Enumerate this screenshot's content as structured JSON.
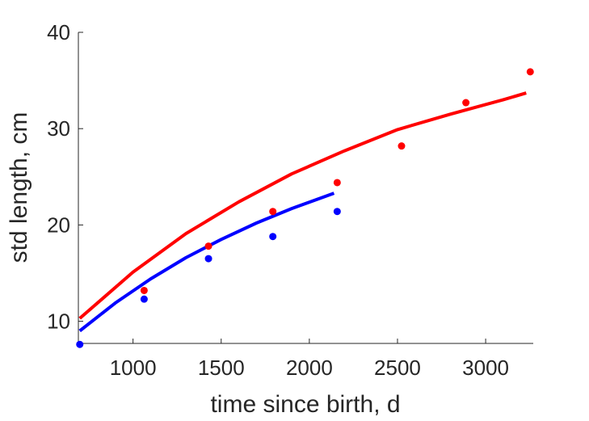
{
  "chart_data": {
    "type": "scatter",
    "xlabel": "time since birth, d",
    "ylabel": "std length, cm",
    "xlim": [
      690,
      3270
    ],
    "ylim": [
      7.7,
      40
    ],
    "xticks": [
      1000,
      1500,
      2000,
      2500,
      3000
    ],
    "yticks": [
      10,
      20,
      30,
      40
    ],
    "xtick_labels": [
      "1000",
      "1500",
      "2000",
      "2500",
      "3000"
    ],
    "ytick_labels": [
      "10",
      "20",
      "30",
      "40"
    ],
    "grid": false,
    "legend": "none",
    "series": [
      {
        "kind": "points",
        "color": "#ff0000",
        "x": [
          1063,
          1428,
          1793,
          2158,
          2523,
          2888,
          3253
        ],
        "y": [
          13.2,
          17.8,
          21.4,
          24.4,
          28.2,
          32.7,
          35.9
        ]
      },
      {
        "kind": "points",
        "color": "#0000ff",
        "x": [
          698,
          1063,
          1428,
          1793,
          2158
        ],
        "y": [
          7.6,
          12.3,
          16.5,
          18.8,
          21.4
        ]
      },
      {
        "kind": "line",
        "color": "#ff0000",
        "x": [
          698,
          1000,
          1300,
          1600,
          1900,
          2200,
          2500,
          2800,
          3100,
          3230
        ],
        "y": [
          10.3,
          15.1,
          19.1,
          22.4,
          25.3,
          27.7,
          29.9,
          31.5,
          33.0,
          33.7
        ]
      },
      {
        "kind": "line",
        "color": "#0000ff",
        "x": [
          698,
          900,
          1100,
          1300,
          1500,
          1700,
          1900,
          2140
        ],
        "y": [
          9.0,
          11.9,
          14.4,
          16.6,
          18.5,
          20.2,
          21.7,
          23.3
        ]
      }
    ]
  }
}
